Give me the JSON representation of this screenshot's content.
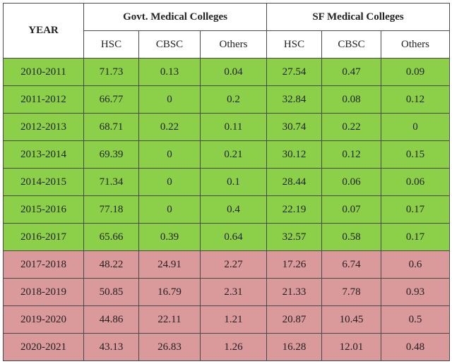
{
  "header": {
    "year_label": "YEAR",
    "group1": "Govt. Medical Colleges",
    "group2": "SF Medical Colleges",
    "sub": [
      "HSC",
      "CBSC",
      "Others",
      "HSC",
      "CBSC",
      "Others"
    ]
  },
  "colors": {
    "green": "#8bd048",
    "pink": "#da999a"
  },
  "rows": [
    {
      "year": "2010-2011",
      "vals": [
        "71.73",
        "0.13",
        "0.04",
        "27.54",
        "0.47",
        "0.09"
      ],
      "band": "green"
    },
    {
      "year": "2011-2012",
      "vals": [
        "66.77",
        "0",
        "0.2",
        "32.84",
        "0.08",
        "0.12"
      ],
      "band": "green"
    },
    {
      "year": "2012-2013",
      "vals": [
        "68.71",
        "0.22",
        "0.11",
        "30.74",
        "0.22",
        "0"
      ],
      "band": "green"
    },
    {
      "year": "2013-2014",
      "vals": [
        "69.39",
        "0",
        "0.21",
        "30.12",
        "0.12",
        "0.15"
      ],
      "band": "green"
    },
    {
      "year": "2014-2015",
      "vals": [
        "71.34",
        "0",
        "0.1",
        "28.44",
        "0.06",
        "0.06"
      ],
      "band": "green"
    },
    {
      "year": "2015-2016",
      "vals": [
        "77.18",
        "0",
        "0.4",
        "22.19",
        "0.07",
        "0.17"
      ],
      "band": "green"
    },
    {
      "year": "2016-2017",
      "vals": [
        "65.66",
        "0.39",
        "0.64",
        "32.57",
        "0.58",
        "0.17"
      ],
      "band": "green"
    },
    {
      "year": "2017-2018",
      "vals": [
        "48.22",
        "24.91",
        "2.27",
        "17.26",
        "6.74",
        "0.6"
      ],
      "band": "pink"
    },
    {
      "year": "2018-2019",
      "vals": [
        "50.85",
        "16.79",
        "2.31",
        "21.33",
        "7.78",
        "0.93"
      ],
      "band": "pink"
    },
    {
      "year": "2019-2020",
      "vals": [
        "44.86",
        "22.11",
        "1.21",
        "20.87",
        "10.45",
        "0.5"
      ],
      "band": "pink"
    },
    {
      "year": "2020-2021",
      "vals": [
        "43.13",
        "26.83",
        "1.26",
        "16.28",
        "12.01",
        "0.48"
      ],
      "band": "pink"
    }
  ]
}
